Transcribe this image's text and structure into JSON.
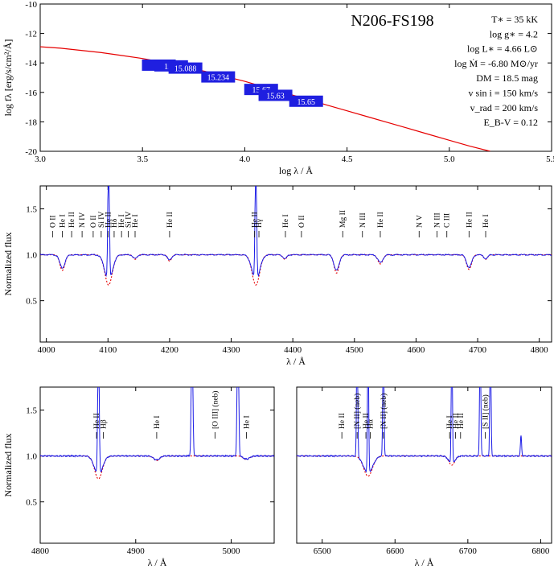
{
  "figure": {
    "star_name": "N206-FS198",
    "parameters": [
      "T∗ = 35 kK",
      "log g∗ = 4.2",
      "log L∗ = 4.66 L⊙",
      "log Ṁ = -6.80 M⊙/yr",
      "DM = 18.5 mag",
      "v sin i = 150 km/s",
      "v_rad = 200 km/s",
      "E_B-V = 0.12"
    ],
    "colors": {
      "observed": "#1a1ae6",
      "model": "#e60000",
      "photometry_box": "#1f1fe0"
    }
  },
  "chart_data": [
    {
      "type": "line",
      "panel": "sed",
      "xlabel": "log λ / Å",
      "ylabel": "log fλ [erg/s/cm²/Å]",
      "xlim": [
        3.0,
        5.5
      ],
      "ylim": [
        -20,
        -10
      ],
      "xticks": [
        "3.0",
        "3.5",
        "4.0",
        "4.5",
        "5.0",
        "5.5"
      ],
      "yticks": [
        "-10",
        "-12",
        "-14",
        "-16",
        "-18",
        "-20"
      ],
      "series": [
        {
          "role": "model",
          "x": [
            3.0,
            3.1,
            3.2,
            3.3,
            3.4,
            3.5,
            3.6,
            3.7,
            3.8,
            3.9,
            4.0,
            4.1,
            4.2,
            4.3,
            4.4,
            4.5,
            4.6,
            4.7,
            4.8,
            4.9,
            5.0,
            5.1,
            5.2
          ],
          "y": [
            -12.9,
            -13.0,
            -13.15,
            -13.3,
            -13.5,
            -13.7,
            -13.95,
            -14.25,
            -14.55,
            -14.9,
            -15.25,
            -15.65,
            -16.05,
            -16.45,
            -16.85,
            -17.25,
            -17.65,
            -18.05,
            -18.45,
            -18.85,
            -19.25,
            -19.65,
            -20.0
          ]
        }
      ],
      "photometry": [
        {
          "label": "14.",
          "x": 3.58,
          "y": -14.15
        },
        {
          "label": "15.1",
          "x": 3.64,
          "y": -14.2
        },
        {
          "label": "15.088",
          "x": 3.71,
          "y": -14.35
        },
        {
          "label": "15.234",
          "x": 3.87,
          "y": -14.95
        },
        {
          "label": "15.67",
          "x": 4.08,
          "y": -15.8
        },
        {
          "label": "15.63",
          "x": 4.15,
          "y": -16.2
        },
        {
          "label": "15.65",
          "x": 4.3,
          "y": -16.6
        }
      ]
    },
    {
      "type": "line",
      "panel": "blue-spectrum",
      "xlabel": "λ / Å",
      "ylabel": "Normalized flux",
      "xlim": [
        3990,
        4820
      ],
      "ylim": [
        0.05,
        1.75
      ],
      "xticks": [
        "4000",
        "4100",
        "4200",
        "4300",
        "4400",
        "4500",
        "4600",
        "4700",
        "4800"
      ],
      "yticks": [
        "0.5",
        "1.0",
        "1.5"
      ],
      "absorption": [
        {
          "x": 4026,
          "depth": 0.17,
          "w": 4
        },
        {
          "x": 4101,
          "depth": 0.33,
          "w": 6
        },
        {
          "x": 4144,
          "depth": 0.05,
          "w": 3
        },
        {
          "x": 4200,
          "depth": 0.07,
          "w": 3
        },
        {
          "x": 4340,
          "depth": 0.33,
          "w": 6
        },
        {
          "x": 4387,
          "depth": 0.05,
          "w": 3
        },
        {
          "x": 4471,
          "depth": 0.2,
          "w": 4
        },
        {
          "x": 4542,
          "depth": 0.1,
          "w": 4
        },
        {
          "x": 4686,
          "depth": 0.16,
          "w": 4
        },
        {
          "x": 4713,
          "depth": 0.05,
          "w": 3
        }
      ],
      "emission": [
        {
          "x": 4101,
          "height": 1.5,
          "w": 1.2
        },
        {
          "x": 4340,
          "height": 1.5,
          "w": 1.2
        }
      ],
      "line_ids": [
        {
          "label": "O II",
          "x": 4010
        },
        {
          "label": "He I",
          "x": 4026
        },
        {
          "label": "He II",
          "x": 4041
        },
        {
          "label": "N IV",
          "x": 4058
        },
        {
          "label": "O II",
          "x": 4076
        },
        {
          "label": "Si IV",
          "x": 4089
        },
        {
          "label": "He II",
          "x": 4100
        },
        {
          "label": "Hδ",
          "x": 4110
        },
        {
          "label": "He I",
          "x": 4122
        },
        {
          "label": "Si IV",
          "x": 4133
        },
        {
          "label": "He I",
          "x": 4144
        },
        {
          "label": "He II",
          "x": 4200
        },
        {
          "label": "He II",
          "x": 4338
        },
        {
          "label": "Hγ",
          "x": 4345
        },
        {
          "label": "He I",
          "x": 4388
        },
        {
          "label": "O II",
          "x": 4414
        },
        {
          "label": "Mg II",
          "x": 4481
        },
        {
          "label": "N III",
          "x": 4513
        },
        {
          "label": "He II",
          "x": 4542
        },
        {
          "label": "N V",
          "x": 4605
        },
        {
          "label": "N III",
          "x": 4634
        },
        {
          "label": "C III",
          "x": 4650
        },
        {
          "label": "He II",
          "x": 4686
        },
        {
          "label": "He I",
          "x": 4713
        }
      ]
    },
    {
      "type": "line",
      "panel": "hbeta-spectrum",
      "xlabel": "λ / Å",
      "ylabel": "Normalized flux",
      "xlim": [
        4800,
        5045
      ],
      "ylim": [
        0.05,
        1.75
      ],
      "xticks": [
        "4800",
        "4900",
        "5000"
      ],
      "yticks": [
        "0.5",
        "1.0",
        "1.5"
      ],
      "absorption": [
        {
          "x": 4861,
          "depth": 0.25,
          "w": 4
        },
        {
          "x": 4922,
          "depth": 0.05,
          "w": 3
        },
        {
          "x": 5016,
          "depth": 0.04,
          "w": 3
        }
      ],
      "emission": [
        {
          "x": 4861,
          "height": 1.5,
          "w": 0.8
        },
        {
          "x": 4959,
          "height": 1.5,
          "w": 0.8
        },
        {
          "x": 5007,
          "height": 1.5,
          "w": 0.8
        }
      ],
      "line_ids": [
        {
          "label": "He II",
          "x": 4859
        },
        {
          "label": "Hβ",
          "x": 4866
        },
        {
          "label": "He I",
          "x": 4922
        },
        {
          "label": "[O III] (neb)",
          "x": 4983
        },
        {
          "label": "He I",
          "x": 5016
        }
      ]
    },
    {
      "type": "line",
      "panel": "halpha-spectrum",
      "xlabel": "λ / Å",
      "ylabel": "",
      "xlim": [
        6465,
        6815
      ],
      "ylim": [
        0.05,
        1.75
      ],
      "xticks": [
        "6500",
        "6600",
        "6700",
        "6800"
      ],
      "yticks": [],
      "absorption": [
        {
          "x": 6563,
          "depth": 0.22,
          "w": 6
        },
        {
          "x": 6678,
          "depth": 0.1,
          "w": 4
        }
      ],
      "emission": [
        {
          "x": 6548,
          "height": 1.5,
          "w": 0.8
        },
        {
          "x": 6563,
          "height": 1.5,
          "w": 0.8
        },
        {
          "x": 6584,
          "height": 1.5,
          "w": 0.8
        },
        {
          "x": 6678,
          "height": 1.5,
          "w": 0.8
        },
        {
          "x": 6717,
          "height": 1.5,
          "w": 0.8
        },
        {
          "x": 6731,
          "height": 1.5,
          "w": 0.8
        },
        {
          "x": 6773,
          "height": 0.22,
          "w": 0.8
        }
      ],
      "line_ids": [
        {
          "label": "He II",
          "x": 6527
        },
        {
          "label": "[N II] (neb)",
          "x": 6548
        },
        {
          "label": "He II",
          "x": 6560
        },
        {
          "label": "Hα",
          "x": 6566
        },
        {
          "label": "[N II] (neb)",
          "x": 6584
        },
        {
          "label": "He I",
          "x": 6675
        },
        {
          "label": "He II",
          "x": 6683
        },
        {
          "label": "He II",
          "x": 6690
        },
        {
          "label": "[S II] (neb)",
          "x": 6724
        }
      ]
    }
  ]
}
